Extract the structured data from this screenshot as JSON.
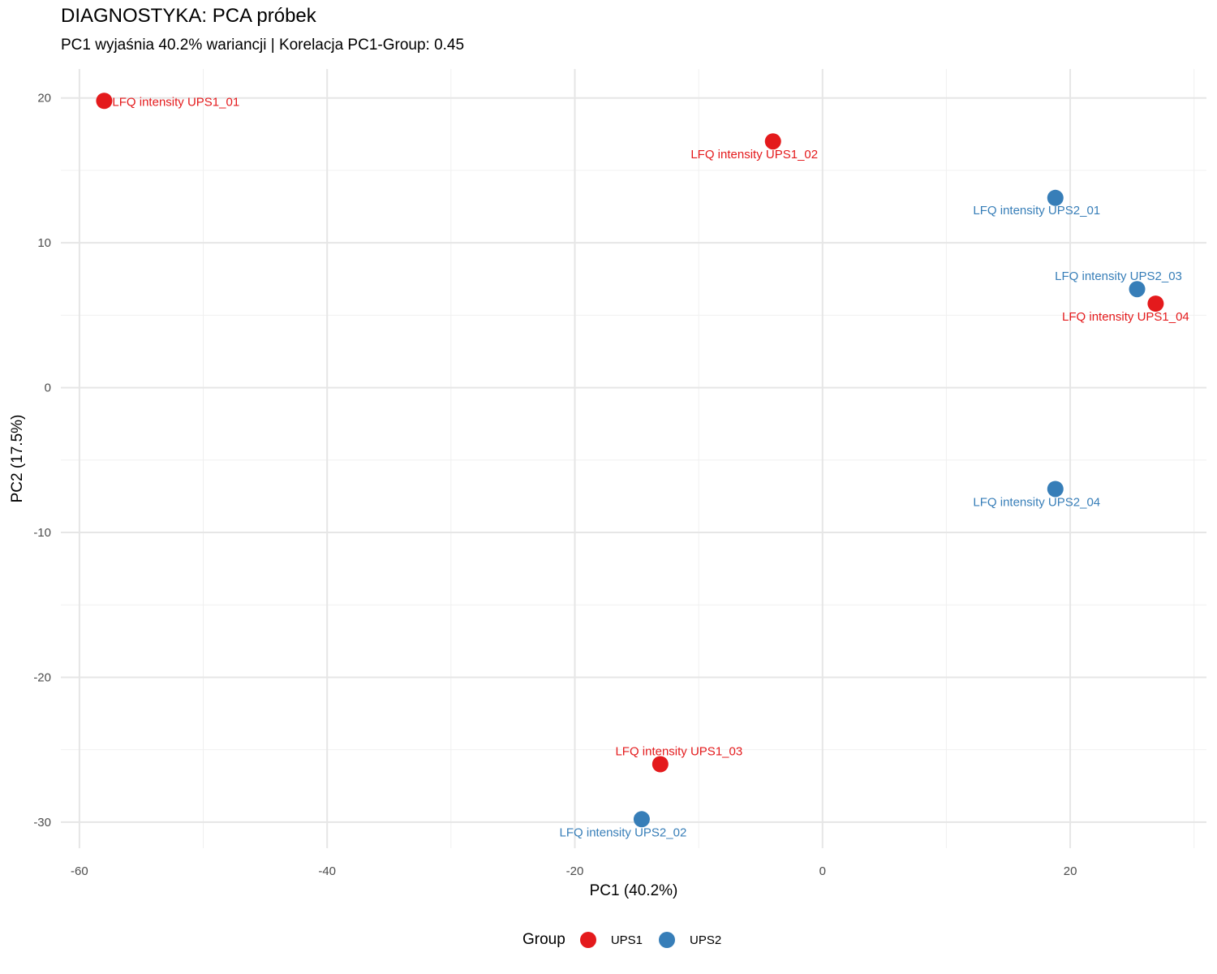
{
  "chart_data": {
    "type": "scatter",
    "title": "DIAGNOSTYKA: PCA próbek",
    "subtitle": "PC1 wyjaśnia 40.2% wariancji | Korelacja PC1-Group: 0.45",
    "xlabel": "PC1 (40.2%)",
    "ylabel": "PC2 (17.5%)",
    "xlim": [
      -61.5,
      31.0
    ],
    "ylim": [
      -31.8,
      22.0
    ],
    "xticks": [
      -60,
      -40,
      -20,
      0,
      20
    ],
    "yticks": [
      -30,
      -20,
      -10,
      0,
      10,
      20
    ],
    "grid": true,
    "legend": {
      "title": "Group",
      "position": "bottom",
      "entries": [
        {
          "name": "UPS1",
          "color": "#E41A1C"
        },
        {
          "name": "UPS2",
          "color": "#377EB8"
        }
      ]
    },
    "points": [
      {
        "label": "LFQ intensity UPS1_01",
        "group": "UPS1",
        "x": -58.0,
        "y": 19.8
      },
      {
        "label": "LFQ intensity UPS1_02",
        "group": "UPS1",
        "x": -4.0,
        "y": 17.0
      },
      {
        "label": "LFQ intensity UPS2_01",
        "group": "UPS2",
        "x": 18.8,
        "y": 13.1
      },
      {
        "label": "LFQ intensity UPS2_03",
        "group": "UPS2",
        "x": 25.4,
        "y": 6.8
      },
      {
        "label": "LFQ intensity UPS1_04",
        "group": "UPS1",
        "x": 26.9,
        "y": 5.8
      },
      {
        "label": "LFQ intensity UPS2_04",
        "group": "UPS2",
        "x": 18.8,
        "y": -7.0
      },
      {
        "label": "LFQ intensity UPS1_03",
        "group": "UPS1",
        "x": -13.1,
        "y": -26.0
      },
      {
        "label": "LFQ intensity UPS2_02",
        "group": "UPS2",
        "x": -14.6,
        "y": -29.8
      }
    ]
  }
}
